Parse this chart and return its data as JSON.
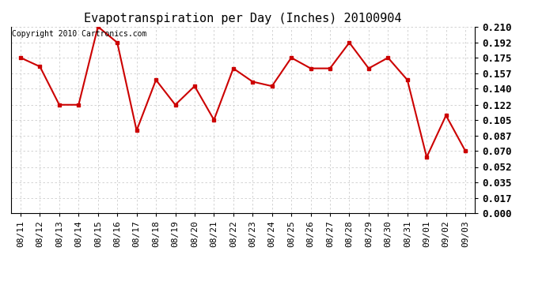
{
  "title": "Evapotranspiration per Day (Inches) 20100904",
  "copyright_text": "Copyright 2010 Cartronics.com",
  "dates": [
    "08/11",
    "08/12",
    "08/13",
    "08/14",
    "08/15",
    "08/16",
    "08/17",
    "08/18",
    "08/19",
    "08/20",
    "08/21",
    "08/22",
    "08/23",
    "08/24",
    "08/25",
    "08/26",
    "08/27",
    "08/28",
    "08/29",
    "08/30",
    "08/31",
    "09/01",
    "09/02",
    "09/03"
  ],
  "values": [
    0.175,
    0.165,
    0.122,
    0.122,
    0.21,
    0.192,
    0.093,
    0.15,
    0.122,
    0.143,
    0.105,
    0.163,
    0.148,
    0.143,
    0.175,
    0.163,
    0.163,
    0.192,
    0.163,
    0.175,
    0.15,
    0.063,
    0.11,
    0.07
  ],
  "line_color": "#cc0000",
  "marker": "s",
  "marker_size": 2.5,
  "bg_color": "#ffffff",
  "grid_color": "#cccccc",
  "ylim": [
    0.0,
    0.21
  ],
  "yticks": [
    0.0,
    0.017,
    0.035,
    0.052,
    0.07,
    0.087,
    0.105,
    0.122,
    0.14,
    0.157,
    0.175,
    0.192,
    0.21
  ],
  "title_fontsize": 11,
  "tick_fontsize": 8,
  "copyright_fontsize": 7,
  "linewidth": 1.5
}
